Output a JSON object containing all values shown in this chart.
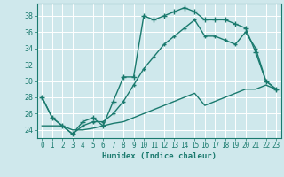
{
  "xlabel": "Humidex (Indice chaleur)",
  "xlim": [
    -0.5,
    23.5
  ],
  "ylim": [
    23,
    39.5
  ],
  "yticks": [
    24,
    26,
    28,
    30,
    32,
    34,
    36,
    38
  ],
  "xticks": [
    0,
    1,
    2,
    3,
    4,
    5,
    6,
    7,
    8,
    9,
    10,
    11,
    12,
    13,
    14,
    15,
    16,
    17,
    18,
    19,
    20,
    21,
    22,
    23
  ],
  "bg_color": "#cfe8ec",
  "grid_color": "#ffffff",
  "line_color": "#1a7a6e",
  "series": [
    {
      "x": [
        0,
        1,
        2,
        3,
        4,
        5,
        6,
        7,
        8,
        9,
        10,
        11,
        12,
        13,
        14,
        15,
        16,
        17,
        18,
        19,
        20,
        21,
        22,
        23
      ],
      "y": [
        28.0,
        25.5,
        24.5,
        23.5,
        25.0,
        25.5,
        24.5,
        27.5,
        30.5,
        30.5,
        38.0,
        37.5,
        38.0,
        38.5,
        39.0,
        38.5,
        37.5,
        37.5,
        37.5,
        37.0,
        36.5,
        33.5,
        30.0,
        29.0
      ],
      "marker": "+",
      "markersize": 4,
      "linewidth": 1.0
    },
    {
      "x": [
        0,
        1,
        2,
        3,
        4,
        5,
        6,
        7,
        8,
        9,
        10,
        11,
        12,
        13,
        14,
        15,
        16,
        17,
        18,
        19,
        20,
        21,
        22,
        23
      ],
      "y": [
        28.0,
        25.5,
        24.5,
        23.5,
        24.5,
        25.0,
        25.0,
        26.0,
        27.5,
        29.5,
        31.5,
        33.0,
        34.5,
        35.5,
        36.5,
        37.5,
        35.5,
        35.5,
        35.0,
        34.5,
        36.0,
        34.0,
        30.0,
        29.0
      ],
      "marker": "+",
      "markersize": 3,
      "linewidth": 1.0
    },
    {
      "x": [
        0,
        1,
        2,
        3,
        4,
        5,
        6,
        7,
        8,
        9,
        10,
        11,
        12,
        13,
        14,
        15,
        16,
        17,
        18,
        19,
        20,
        21,
        22,
        23
      ],
      "y": [
        24.5,
        24.5,
        24.5,
        24.0,
        24.0,
        24.2,
        24.5,
        24.8,
        25.0,
        25.5,
        26.0,
        26.5,
        27.0,
        27.5,
        28.0,
        28.5,
        27.0,
        27.5,
        28.0,
        28.5,
        29.0,
        29.0,
        29.5,
        29.0
      ],
      "marker": null,
      "markersize": 0,
      "linewidth": 1.0
    }
  ]
}
